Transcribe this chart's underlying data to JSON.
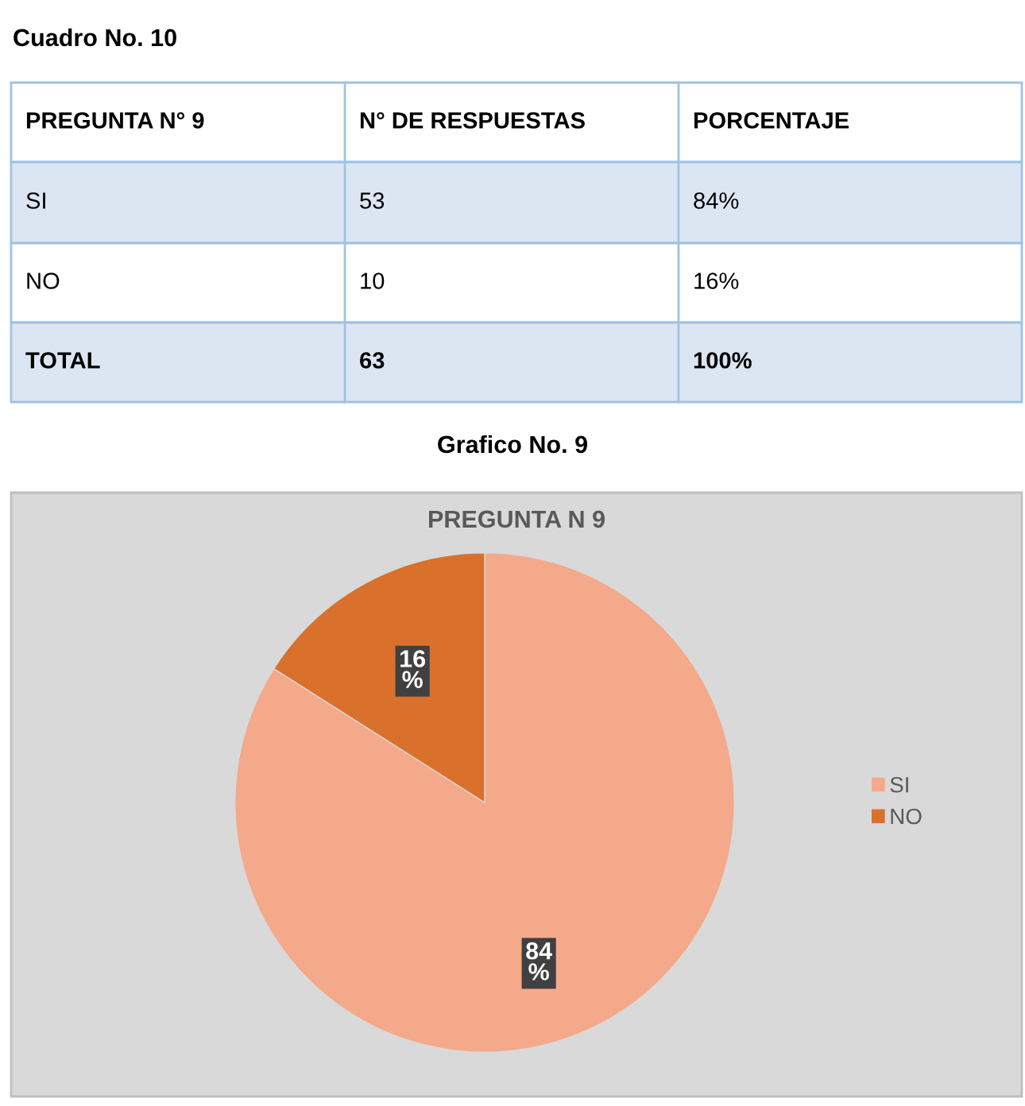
{
  "chart_data": {
    "type": "pie",
    "title": "PREGUNTA N 9",
    "categories": [
      "SI",
      "NO"
    ],
    "values": [
      84,
      16
    ],
    "colors": [
      "#f4a98a",
      "#d9712c"
    ],
    "value_labels": [
      "84\n%",
      "16\n%"
    ],
    "legend": "right",
    "annotations": [
      "Cuadro No. 10",
      "PREGUNTA N° 9",
      "N° DE RESPUESTAS",
      "PORCENTAJE",
      "SI",
      "53",
      "84%",
      "NO",
      "10",
      "16%",
      "TOTAL",
      "63",
      "100%",
      "Grafico No. 9"
    ]
  }
}
